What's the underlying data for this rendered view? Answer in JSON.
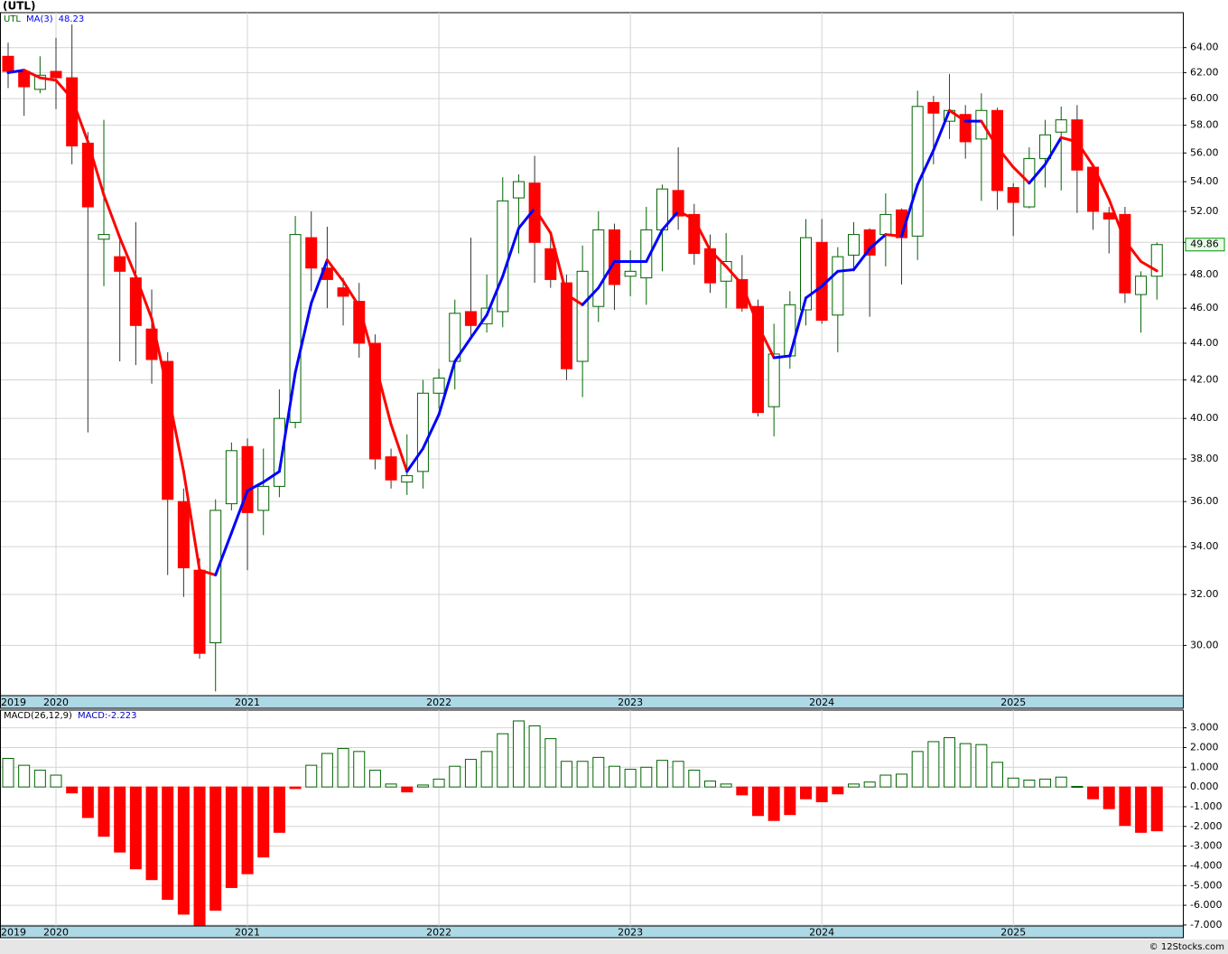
{
  "chart_data": [
    {
      "type": "candlestick",
      "title": "(UTL)",
      "legend": [
        "UTL",
        "MA(3)",
        "48.23"
      ],
      "log_scale": true,
      "grid": true,
      "categories": [
        "2019",
        null,
        null,
        "2020",
        null,
        null,
        null,
        null,
        null,
        null,
        null,
        null,
        null,
        null,
        null,
        "2021",
        null,
        null,
        null,
        null,
        null,
        null,
        null,
        null,
        null,
        null,
        null,
        "2022",
        null,
        null,
        null,
        null,
        null,
        null,
        null,
        null,
        null,
        null,
        null,
        "2023",
        null,
        null,
        null,
        null,
        null,
        null,
        null,
        null,
        null,
        null,
        null,
        "2024",
        null,
        null,
        null,
        null,
        null,
        null,
        null,
        null,
        null,
        null,
        null,
        "2025",
        null,
        null,
        null,
        null,
        null,
        null,
        null,
        null,
        null
      ],
      "open": [
        63.3,
        62.1,
        60.7,
        62.1,
        61.6,
        56.7,
        50.2,
        49.1,
        47.8,
        44.8,
        43.0,
        36.0,
        33.0,
        30.1,
        35.9,
        38.6,
        35.6,
        36.7,
        39.8,
        50.3,
        48.4,
        47.2,
        46.4,
        44.0,
        38.1,
        36.9,
        37.4,
        41.3,
        43.0,
        45.8,
        45.1,
        45.8,
        52.9,
        53.9,
        49.6,
        47.5,
        43.0,
        46.1,
        50.8,
        47.9,
        47.8,
        50.8,
        53.4,
        51.8,
        49.6,
        47.6,
        47.7,
        46.1,
        40.6,
        43.3,
        45.9,
        50.0,
        45.6,
        49.2,
        50.8,
        50.5,
        52.1,
        50.4,
        59.7,
        58.3,
        58.8,
        57.0,
        59.1,
        53.6,
        52.3,
        55.6,
        57.5,
        58.4,
        55.0,
        51.9,
        51.8,
        46.8,
        47.9
      ],
      "high": [
        64.4,
        62.3,
        63.3,
        64.8,
        65.9,
        57.5,
        58.4,
        50.3,
        51.3,
        47.1,
        43.5,
        36.6,
        33.5,
        36.1,
        38.8,
        39.0,
        38.5,
        41.5,
        51.7,
        52.0,
        51.0,
        47.8,
        47.5,
        44.5,
        38.5,
        39.2,
        42.0,
        42.6,
        46.5,
        50.3,
        48.0,
        54.3,
        54.5,
        55.8,
        50.6,
        48.0,
        49.8,
        52.0,
        51.2,
        49.5,
        52.3,
        53.8,
        56.4,
        52.5,
        50.5,
        50.6,
        49.2,
        46.5,
        45.1,
        47.0,
        51.5,
        51.5,
        49.7,
        51.3,
        50.9,
        53.2,
        52.2,
        60.6,
        60.2,
        61.9,
        59.5,
        60.4,
        59.3,
        53.9,
        56.4,
        58.4,
        59.4,
        59.5,
        55.1,
        52.3,
        52.3,
        48.2,
        50.0
      ],
      "low": [
        60.8,
        58.7,
        60.4,
        59.2,
        55.2,
        39.3,
        47.3,
        43.0,
        42.8,
        41.8,
        32.8,
        31.9,
        29.5,
        28.3,
        35.6,
        33.0,
        34.5,
        36.2,
        39.5,
        47.0,
        46.0,
        45.0,
        43.2,
        37.5,
        36.6,
        36.3,
        36.6,
        40.5,
        41.5,
        44.3,
        44.6,
        44.9,
        49.3,
        47.5,
        47.2,
        42.0,
        41.1,
        45.2,
        45.9,
        46.7,
        46.2,
        48.2,
        50.8,
        48.6,
        46.9,
        46.0,
        45.8,
        40.1,
        39.1,
        42.6,
        45.0,
        45.1,
        43.5,
        48.2,
        45.5,
        48.5,
        47.4,
        48.9,
        55.2,
        57.0,
        55.6,
        52.7,
        52.1,
        50.4,
        52.2,
        53.6,
        53.4,
        51.9,
        50.8,
        49.3,
        46.3,
        44.6,
        46.5
      ],
      "close": [
        62.1,
        60.9,
        61.8,
        61.6,
        56.5,
        52.3,
        50.5,
        48.2,
        45.0,
        43.1,
        36.1,
        33.1,
        29.7,
        35.6,
        38.4,
        35.5,
        36.7,
        40.0,
        50.5,
        48.4,
        47.7,
        46.7,
        44.0,
        38.0,
        37.0,
        37.2,
        41.3,
        42.1,
        45.7,
        45.0,
        46.0,
        52.7,
        54.0,
        50.0,
        47.7,
        42.6,
        48.2,
        50.8,
        47.4,
        48.2,
        50.8,
        53.5,
        51.7,
        49.3,
        47.5,
        48.8,
        46.0,
        40.3,
        43.4,
        46.2,
        50.3,
        45.3,
        49.1,
        50.5,
        49.2,
        51.8,
        50.3,
        59.4,
        58.9,
        59.1,
        56.8,
        59.1,
        53.4,
        52.6,
        55.6,
        57.3,
        58.4,
        54.8,
        52.0,
        51.5,
        46.9,
        47.9,
        49.86
      ],
      "last_label": "49.86",
      "up_color": "#ffffff",
      "up_border": "#006400",
      "down_color": "#ff0000",
      "wick_color": "#333333",
      "ma": {
        "name": "MA(3)",
        "up_color": "#0000ff",
        "down_color": "#ff0000",
        "values": [
          62.0,
          62.2,
          61.6,
          61.4,
          60.0,
          56.8,
          53.1,
          50.3,
          47.9,
          45.4,
          41.4,
          37.4,
          33.0,
          32.8,
          34.6,
          36.5,
          36.9,
          37.4,
          42.4,
          46.3,
          48.9,
          47.6,
          46.1,
          42.9,
          39.7,
          37.4,
          38.5,
          40.2,
          43.0,
          44.3,
          45.6,
          47.9,
          50.9,
          52.2,
          50.6,
          46.8,
          46.2,
          47.2,
          48.8,
          48.8,
          48.8,
          50.8,
          52.0,
          51.5,
          49.5,
          48.5,
          47.4,
          45.0,
          43.2,
          43.3,
          46.6,
          47.3,
          48.2,
          48.3,
          49.6,
          50.5,
          50.4,
          53.8,
          56.2,
          59.1,
          58.3,
          58.3,
          56.4,
          55.0,
          53.9,
          55.2,
          57.1,
          56.8,
          55.1,
          52.8,
          50.1,
          48.8,
          48.23
        ]
      },
      "ylim": [
        28.15,
        66.9
      ],
      "yticks": [
        {
          "value": 30,
          "label": "30.00"
        },
        {
          "value": 32,
          "label": "32.00"
        },
        {
          "value": 34,
          "label": "34.00"
        },
        {
          "value": 36,
          "label": "36.00"
        },
        {
          "value": 38,
          "label": "38.00"
        },
        {
          "value": 40,
          "label": "40.00"
        },
        {
          "value": 42,
          "label": "42.00"
        },
        {
          "value": 44,
          "label": "44.00"
        },
        {
          "value": 46,
          "label": "46.00"
        },
        {
          "value": 48,
          "label": "48.00"
        },
        {
          "value": 50,
          "label": "50.00"
        },
        {
          "value": 52,
          "label": "52.00"
        },
        {
          "value": 54,
          "label": "54.00"
        },
        {
          "value": 56,
          "label": "56.00"
        },
        {
          "value": 58,
          "label": "58.00"
        },
        {
          "value": 60,
          "label": "60.00"
        },
        {
          "value": 62,
          "label": "62.00"
        },
        {
          "value": 64,
          "label": "64.00"
        }
      ]
    },
    {
      "type": "bar",
      "legend": [
        "MACD(26,12,9)",
        "MACD:-2.223"
      ],
      "grid": true,
      "categories": [
        "2019",
        null,
        null,
        "2020",
        null,
        null,
        null,
        null,
        null,
        null,
        null,
        null,
        null,
        null,
        null,
        "2021",
        null,
        null,
        null,
        null,
        null,
        null,
        null,
        null,
        null,
        null,
        null,
        "2022",
        null,
        null,
        null,
        null,
        null,
        null,
        null,
        null,
        null,
        null,
        null,
        "2023",
        null,
        null,
        null,
        null,
        null,
        null,
        null,
        null,
        null,
        null,
        null,
        "2024",
        null,
        null,
        null,
        null,
        null,
        null,
        null,
        null,
        null,
        null,
        null,
        "2025",
        null,
        null,
        null,
        null,
        null,
        null,
        null,
        null,
        null
      ],
      "series": [
        {
          "name": "MACD(26,12,9)",
          "pos_color": "#006400",
          "neg_color": "#ff0000",
          "values": [
            1.45,
            1.1,
            0.85,
            0.6,
            -0.3,
            -1.55,
            -2.5,
            -3.3,
            -4.15,
            -4.7,
            -5.7,
            -6.45,
            -7.0,
            -6.25,
            -5.1,
            -4.4,
            -3.55,
            -2.3,
            -0.08,
            1.1,
            1.7,
            1.95,
            1.8,
            0.85,
            0.15,
            -0.25,
            0.1,
            0.4,
            1.05,
            1.4,
            1.8,
            2.7,
            3.35,
            3.1,
            2.45,
            1.3,
            1.3,
            1.5,
            1.05,
            0.9,
            1.0,
            1.35,
            1.3,
            0.85,
            0.3,
            0.15,
            -0.4,
            -1.45,
            -1.7,
            -1.4,
            -0.6,
            -0.75,
            -0.35,
            0.15,
            0.25,
            0.6,
            0.65,
            1.8,
            2.3,
            2.5,
            2.2,
            2.15,
            1.25,
            0.45,
            0.35,
            0.4,
            0.5,
            0.03,
            -0.6,
            -1.1,
            -1.95,
            -2.3,
            -2.223
          ]
        }
      ],
      "ylim": [
        -7.05,
        3.9
      ],
      "yticks": [
        {
          "value": -7,
          "label": "-7.000"
        },
        {
          "value": -6,
          "label": "-6.000"
        },
        {
          "value": -5,
          "label": "-5.000"
        },
        {
          "value": -4,
          "label": "-4.000"
        },
        {
          "value": -3,
          "label": "-3.000"
        },
        {
          "value": -2,
          "label": "-2.000"
        },
        {
          "value": -1,
          "label": "-1.000"
        },
        {
          "value": 0,
          "label": "0.000"
        },
        {
          "value": 1,
          "label": "1.000"
        },
        {
          "value": 2,
          "label": "2.000"
        },
        {
          "value": 3,
          "label": "3.000"
        }
      ]
    }
  ],
  "footer": "© 12Stocks.com"
}
